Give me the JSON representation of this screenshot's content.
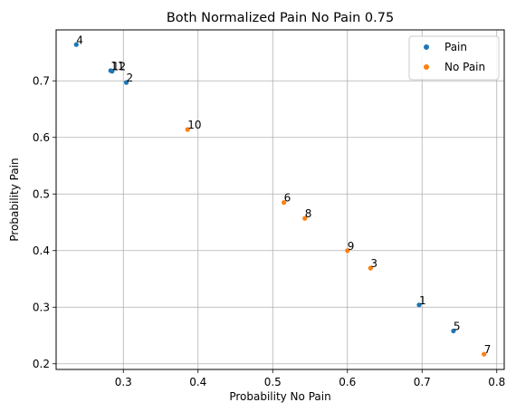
{
  "chart_data": {
    "type": "scatter",
    "title": "Both Normalized Pain No Pain 0.75",
    "xlabel": "Probability No Pain",
    "ylabel": "Probability Pain",
    "xlim": [
      0.21,
      0.81
    ],
    "ylim": [
      0.19,
      0.79
    ],
    "xticks": [
      0.3,
      0.4,
      0.5,
      0.6,
      0.7,
      0.8
    ],
    "xtick_labels": [
      "0.3",
      "0.4",
      "0.5",
      "0.6",
      "0.7",
      "0.8"
    ],
    "yticks": [
      0.2,
      0.3,
      0.4,
      0.5,
      0.6,
      0.7
    ],
    "ytick_labels": [
      "0.2",
      "0.3",
      "0.4",
      "0.5",
      "0.6",
      "0.7"
    ],
    "grid": true,
    "legend": "top-right",
    "series": [
      {
        "name": "Pain",
        "color": "#1f77b4",
        "points": [
          {
            "label": "4",
            "x": 0.237,
            "y": 0.764
          },
          {
            "label": "11",
            "x": 0.283,
            "y": 0.718
          },
          {
            "label": "12",
            "x": 0.285,
            "y": 0.717
          },
          {
            "label": "2",
            "x": 0.304,
            "y": 0.697
          },
          {
            "label": "1",
            "x": 0.696,
            "y": 0.304
          },
          {
            "label": "5",
            "x": 0.742,
            "y": 0.258
          }
        ]
      },
      {
        "name": "No Pain",
        "color": "#ff7f0e",
        "points": [
          {
            "label": "10",
            "x": 0.386,
            "y": 0.614
          },
          {
            "label": "6",
            "x": 0.515,
            "y": 0.485
          },
          {
            "label": "8",
            "x": 0.543,
            "y": 0.457
          },
          {
            "label": "9",
            "x": 0.6,
            "y": 0.4
          },
          {
            "label": "3",
            "x": 0.631,
            "y": 0.369
          },
          {
            "label": "7",
            "x": 0.783,
            "y": 0.217
          }
        ]
      }
    ]
  }
}
